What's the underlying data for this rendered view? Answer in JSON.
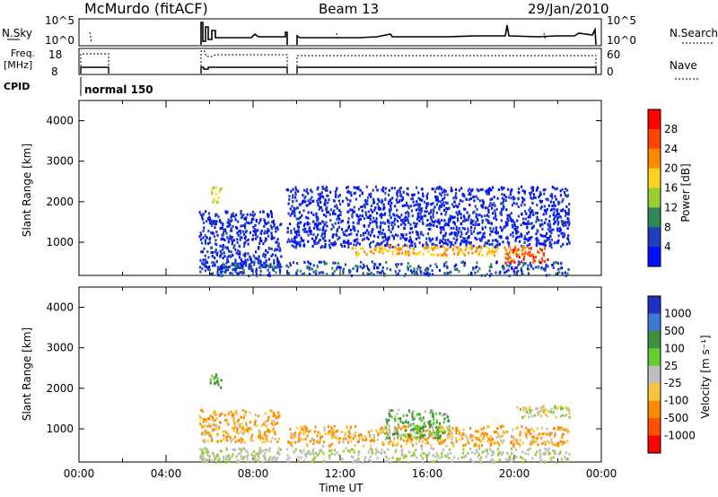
{
  "header": {
    "station": "McMurdo (fitACF)",
    "beam": "Beam 13",
    "date": "29/Jan/2010"
  },
  "summary_panels": {
    "nsky_label": "N.Sky",
    "nsky_ticks": [
      "10^5",
      "10^0"
    ],
    "nsearch_label": "N.Search",
    "nsearch_ticks": [
      "10^5",
      "10^0"
    ],
    "freq_label": "Freq.",
    "freq_unit": "[MHz]",
    "freq_ticks": [
      "18",
      "8"
    ],
    "nave_label": "Nave",
    "nave_ticks": [
      "60",
      "0"
    ],
    "cpid_label": "CPID",
    "cpid_value": "normal 150"
  },
  "power_colorbar": {
    "label": "Power [dB]",
    "ticks": [
      "28",
      "24",
      "20",
      "16",
      "12",
      "8",
      "4"
    ],
    "colors": [
      "#ff0000",
      "#ff4500",
      "#ff8c00",
      "#ffd21f",
      "#9acd32",
      "#2e8b57",
      "#1f3fbf",
      "#0010ff"
    ]
  },
  "velocity_colorbar": {
    "label": "Velocity [m s⁻¹]",
    "ticks": [
      "1000",
      "500",
      "100",
      "25",
      "-25",
      "-100",
      "-500",
      "-1000"
    ],
    "colors": [
      "#2030c0",
      "#3a7ad0",
      "#3f8f3f",
      "#66cc33",
      "#bebebe",
      "#f5c542",
      "#ff8c00",
      "#ff5000",
      "#ff0000"
    ]
  },
  "chart_data": [
    {
      "type": "heatmap",
      "title": "",
      "xlabel": "",
      "ylabel": "Slant Range [km]",
      "ylim": [
        180,
        4500
      ],
      "y_ticks": [
        "4000",
        "3000",
        "2000",
        "1000"
      ],
      "quantity": "Power [dB]",
      "echo_regions": [
        {
          "t_start": "05:30",
          "t_end": "09:15",
          "range_min": 400,
          "range_max": 1800,
          "power_db": 6
        },
        {
          "t_start": "06:00",
          "t_end": "06:30",
          "range_min": 2000,
          "range_max": 2400,
          "power_db": 18
        },
        {
          "t_start": "09:30",
          "t_end": "22:30",
          "range_min": 900,
          "range_max": 2400,
          "power_db": 6
        },
        {
          "t_start": "12:30",
          "t_end": "20:30",
          "range_min": 700,
          "range_max": 950,
          "power_db": 22
        },
        {
          "t_start": "19:30",
          "t_end": "21:30",
          "range_min": 500,
          "range_max": 900,
          "power_db": 28
        }
      ]
    },
    {
      "type": "heatmap",
      "title": "",
      "xlabel": "Time UT",
      "ylabel": "Slant Range [km]",
      "ylim": [
        180,
        4500
      ],
      "y_ticks": [
        "4000",
        "3000",
        "2000",
        "1000"
      ],
      "x_ticks": [
        "00:00",
        "04:00",
        "08:00",
        "12:00",
        "16:00",
        "20:00",
        "00:00"
      ],
      "quantity": "Velocity [m s⁻¹]",
      "echo_regions": [
        {
          "t_start": "05:30",
          "t_end": "09:15",
          "range_min": 700,
          "range_max": 1500,
          "velocity": -100
        },
        {
          "t_start": "06:00",
          "t_end": "06:30",
          "range_min": 2000,
          "range_max": 2400,
          "velocity": 100
        },
        {
          "t_start": "09:30",
          "t_end": "22:30",
          "range_min": 600,
          "range_max": 1100,
          "velocity": -100
        },
        {
          "t_start": "14:00",
          "t_end": "17:00",
          "range_min": 800,
          "range_max": 1500,
          "velocity": 100
        },
        {
          "t_start": "20:00",
          "t_end": "22:30",
          "range_min": 1300,
          "range_max": 1600,
          "velocity": 0
        }
      ]
    }
  ]
}
